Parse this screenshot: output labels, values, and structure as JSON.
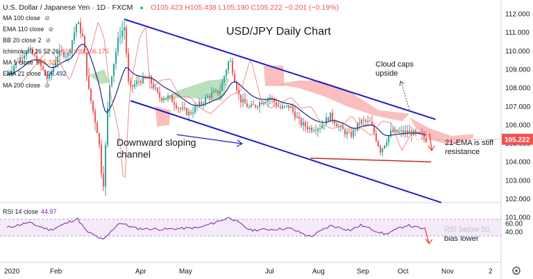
{
  "header": {
    "symbol": "U.S. Dollar / Japanese Yen · 1D · FXCM",
    "ohlc": "O105.423 H105.438 L105.190 C105.222 −0.201 (−0.19%)"
  },
  "indicators": [
    {
      "name": "MA 100 close",
      "value": ""
    },
    {
      "name": "EMA 110 close",
      "value": ""
    },
    {
      "name": "BB 20 close 2",
      "value": ""
    },
    {
      "name": "Ichimoku 9 26 52 26",
      "value": "105.999  106.175"
    },
    {
      "name": "MA 5 close",
      "value": "105.320"
    },
    {
      "name": "EMA 21 close",
      "value": "105.492"
    },
    {
      "name": "MA 200 close",
      "value": ""
    }
  ],
  "rsi_label": {
    "name": "RSI 14 close",
    "value": "44.97"
  },
  "colors": {
    "bull": "#26a69a",
    "bear": "#ef5350",
    "accent": "#1a1ac8",
    "rsi": "#7b1fa2",
    "cloud_bull": "#a5d6a7",
    "cloud_bear": "#f8a8a8"
  },
  "chart_data": {
    "type": "candlestick",
    "title": "USD/JPY Daily Chart",
    "price_axis": {
      "ticks": [
        "112.000",
        "111.000",
        "110.000",
        "109.000",
        "108.000",
        "107.000",
        "106.000",
        "105.000",
        "104.000",
        "103.000",
        "102.000",
        "101.000"
      ],
      "last_price": "105.222",
      "ylim": [
        100.6,
        112.4
      ]
    },
    "time_axis": {
      "labels": [
        "2020",
        "Feb",
        "Apr",
        "May",
        "Jul",
        "Aug",
        "Sep",
        "Oct",
        "Nov",
        "2"
      ]
    },
    "rsi_axis": {
      "ticks": [
        "60.00",
        "40.00"
      ],
      "ylim": [
        14,
        82
      ],
      "band": [
        30,
        70
      ]
    },
    "annotations": [
      {
        "text": "USD/JPY Daily Chart"
      },
      {
        "text": "Downward sloping channel"
      },
      {
        "text": "Cloud caps upside"
      },
      {
        "text": "21-EMA is stiff resistance"
      },
      {
        "text": "RSI below 50, bias lower"
      }
    ],
    "channel": {
      "upper": [
        [
          "Mar 24",
          111.7
        ],
        [
          "Oct 26",
          106.3
        ]
      ],
      "lower": [
        [
          "Mar 28",
          107.3
        ],
        [
          "Oct 30",
          101.8
        ]
      ]
    },
    "support_line": {
      "from": [
        "Jul 31",
        104.2
      ],
      "to": [
        "Oct 23",
        104.0
      ]
    },
    "price_path": [
      [
        "Jan 2",
        108.7
      ],
      [
        "Jan 10",
        109.5
      ],
      [
        "Jan 17",
        110.1
      ],
      [
        "Jan 24",
        109.4
      ],
      [
        "Jan 31",
        108.4
      ],
      [
        "Feb 7",
        109.9
      ],
      [
        "Feb 14",
        109.8
      ],
      [
        "Feb 20",
        111.6
      ],
      [
        "Feb 24",
        110.7
      ],
      [
        "Feb 28",
        107.9
      ],
      [
        "Mar 6",
        105.3
      ],
      [
        "Mar 9",
        102.4
      ],
      [
        "Mar 13",
        107.9
      ],
      [
        "Mar 20",
        110.8
      ],
      [
        "Mar 24",
        111.3
      ],
      [
        "Mar 27",
        107.9
      ],
      [
        "Apr 3",
        108.4
      ],
      [
        "Apr 10",
        108.5
      ],
      [
        "Apr 17",
        107.5
      ],
      [
        "Apr 24",
        107.5
      ],
      [
        "May 1",
        106.9
      ],
      [
        "May 8",
        106.6
      ],
      [
        "May 15",
        107.1
      ],
      [
        "May 22",
        107.6
      ],
      [
        "May 29",
        107.8
      ],
      [
        "Jun 5",
        109.6
      ],
      [
        "Jun 12",
        107.4
      ],
      [
        "Jun 19",
        106.9
      ],
      [
        "Jun 26",
        107.2
      ],
      [
        "Jul 3",
        107.5
      ],
      [
        "Jul 10",
        106.9
      ],
      [
        "Jul 17",
        107.0
      ],
      [
        "Jul 24",
        106.1
      ],
      [
        "Jul 31",
        105.8
      ],
      [
        "Aug 7",
        105.9
      ],
      [
        "Aug 14",
        106.5
      ],
      [
        "Aug 21",
        105.8
      ],
      [
        "Aug 28",
        105.4
      ],
      [
        "Sep 4",
        106.2
      ],
      [
        "Sep 11",
        106.1
      ],
      [
        "Sep 18",
        104.6
      ],
      [
        "Sep 25",
        105.6
      ],
      [
        "Oct 2",
        105.6
      ],
      [
        "Oct 9",
        105.6
      ],
      [
        "Oct 16",
        105.4
      ],
      [
        "Oct 20",
        105.2
      ]
    ],
    "rsi_path": [
      [
        "Jan 2",
        50
      ],
      [
        "Jan 17",
        62
      ],
      [
        "Feb 1",
        44
      ],
      [
        "Feb 20",
        72
      ],
      [
        "Feb 26",
        42
      ],
      [
        "Mar 9",
        20
      ],
      [
        "Mar 20",
        62
      ],
      [
        "Apr 1",
        48
      ],
      [
        "Apr 20",
        46
      ],
      [
        "May 15",
        50
      ],
      [
        "Jun 5",
        75
      ],
      [
        "Jun 19",
        44
      ],
      [
        "Jul 17",
        48
      ],
      [
        "Jul 31",
        28
      ],
      [
        "Aug 14",
        55
      ],
      [
        "Aug 28",
        44
      ],
      [
        "Sep 4",
        56
      ],
      [
        "Sep 21",
        34
      ],
      [
        "Oct 6",
        56
      ],
      [
        "Oct 20",
        45
      ]
    ]
  }
}
